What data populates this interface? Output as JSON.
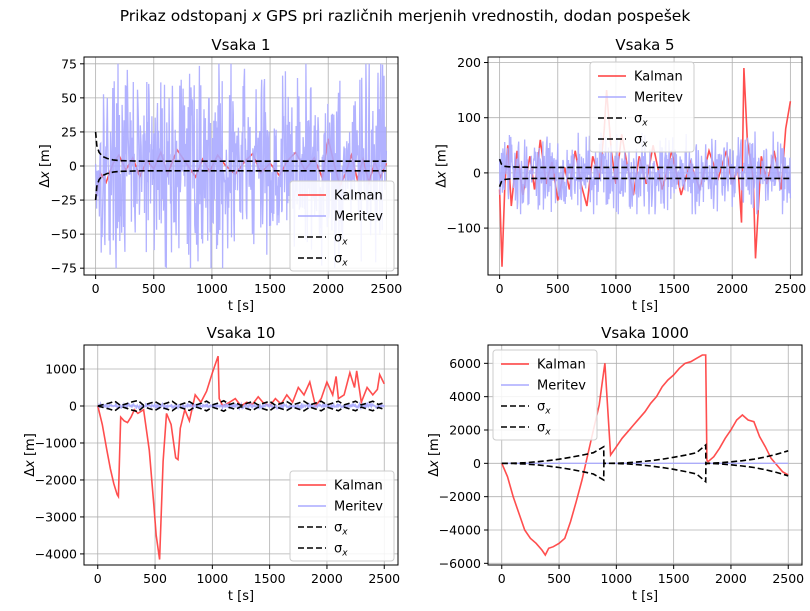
{
  "figure": {
    "suptitle_parts": [
      "Prikaz odstopanj ",
      "x",
      " GPS pri različnih merjenih vrednostih, dodan pospešek"
    ]
  },
  "colors": {
    "kalman": "#ff3b3b",
    "meritev": "#aaaaff",
    "sigma": "#000000",
    "grid": "#b0b0b0"
  },
  "chart_data": [
    {
      "type": "line",
      "title": "Vsaka 1",
      "xlabel": "t [s]",
      "ylabel_parts": [
        "Δ",
        "x",
        " [m]"
      ],
      "xlim": [
        -100,
        2600
      ],
      "ylim": [
        -80,
        80
      ],
      "xticks": [
        0,
        500,
        1000,
        1500,
        2000,
        2500
      ],
      "yticks": [
        -75,
        -50,
        -25,
        0,
        25,
        50,
        75
      ],
      "legend_position": "lower-right",
      "legend": [
        "Kalman",
        "Meritev",
        "σx",
        "σx"
      ],
      "series": [
        {
          "name": "Kalman",
          "kind": "kalman",
          "x": [
            0,
            40,
            90,
            150,
            200,
            260,
            320,
            380,
            440,
            500,
            560,
            620,
            700,
            780,
            860,
            920,
            980,
            1050,
            1120,
            1200,
            1280,
            1350,
            1420,
            1500,
            1580,
            1650,
            1720,
            1800,
            1880,
            1950,
            2000,
            2050,
            2100,
            2150,
            2200,
            2250,
            2300,
            2350,
            2400,
            2450,
            2500
          ],
          "y": [
            -25,
            -5,
            -12,
            2,
            8,
            -3,
            6,
            -8,
            4,
            -2,
            10,
            -6,
            12,
            2,
            -8,
            5,
            -4,
            8,
            0,
            -6,
            3,
            9,
            -5,
            2,
            -7,
            4,
            10,
            -3,
            6,
            -9,
            20,
            2,
            -15,
            -5,
            8,
            -10,
            5,
            -12,
            3,
            -8,
            2
          ]
        },
        {
          "name": "Meritev",
          "kind": "meritev",
          "noise_band": [
            -75,
            75
          ]
        },
        {
          "name": "σx",
          "kind": "sigma",
          "x": [
            0,
            10,
            30,
            60,
            100,
            150,
            200,
            400,
            800,
            1200,
            1600,
            2000,
            2500
          ],
          "y": [
            25,
            15,
            10,
            7,
            5.5,
            4.5,
            4,
            3.5,
            3.5,
            3.5,
            3.5,
            3.5,
            3.5
          ]
        },
        {
          "name": "σx",
          "kind": "sigma",
          "x": [
            0,
            10,
            30,
            60,
            100,
            150,
            200,
            400,
            800,
            1200,
            1600,
            2000,
            2500
          ],
          "y": [
            -25,
            -15,
            -10,
            -7,
            -5.5,
            -4.5,
            -4,
            -3.5,
            -3.5,
            -3.5,
            -3.5,
            -3.5,
            -3.5
          ]
        }
      ]
    },
    {
      "type": "line",
      "title": "Vsaka 5",
      "xlabel": "t [s]",
      "ylabel_parts": [
        "Δ",
        "x",
        " [m]"
      ],
      "xlim": [
        -100,
        2600
      ],
      "ylim": [
        -185,
        210
      ],
      "xticks": [
        0,
        500,
        1000,
        1500,
        2000,
        2500
      ],
      "yticks": [
        -100,
        0,
        100,
        200
      ],
      "legend_position": "upper-center",
      "legend": [
        "Kalman",
        "Meritev",
        "σx",
        "σx"
      ],
      "series": [
        {
          "name": "Kalman",
          "kind": "kalman",
          "x": [
            0,
            20,
            45,
            70,
            100,
            150,
            200,
            260,
            300,
            350,
            400,
            450,
            500,
            560,
            600,
            650,
            700,
            750,
            800,
            860,
            900,
            920,
            960,
            1000,
            1050,
            1100,
            1150,
            1200,
            1260,
            1320,
            1400,
            1480,
            1560,
            1640,
            1720,
            1800,
            1880,
            1950,
            2000,
            2050,
            2080,
            2100,
            2130,
            2180,
            2200,
            2250,
            2300,
            2360,
            2420,
            2460,
            2500
          ],
          "y": [
            -30,
            -170,
            -20,
            50,
            -60,
            40,
            -40,
            30,
            -30,
            60,
            -20,
            20,
            -50,
            10,
            -30,
            40,
            -20,
            -60,
            30,
            -10,
            80,
            150,
            40,
            -20,
            70,
            10,
            -40,
            30,
            -20,
            50,
            -30,
            40,
            -40,
            20,
            -30,
            40,
            -10,
            40,
            -20,
            10,
            -90,
            190,
            60,
            -10,
            -155,
            30,
            -20,
            40,
            -30,
            80,
            130
          ]
        },
        {
          "name": "Meritev",
          "kind": "meritev",
          "noise_band": [
            -75,
            75
          ]
        },
        {
          "name": "σx",
          "kind": "sigma",
          "x": [
            0,
            15,
            40,
            80,
            150,
            300,
            600,
            1000,
            1500,
            2000,
            2500
          ],
          "y": [
            25,
            16,
            12,
            11,
            10.5,
            10,
            10,
            10,
            10,
            10,
            10
          ]
        },
        {
          "name": "σx",
          "kind": "sigma",
          "x": [
            0,
            15,
            40,
            80,
            150,
            300,
            600,
            1000,
            1500,
            2000,
            2500
          ],
          "y": [
            -25,
            -16,
            -12,
            -11,
            -10.5,
            -10,
            -10,
            -10,
            -10,
            -10,
            -10
          ]
        }
      ]
    },
    {
      "type": "line",
      "title": "Vsaka 10",
      "xlabel": "t [s]",
      "ylabel_parts": [
        "Δ",
        "x",
        " [m]"
      ],
      "xlim": [
        -120,
        2620
      ],
      "ylim": [
        -4300,
        1650
      ],
      "xticks": [
        0,
        500,
        1000,
        1500,
        2000,
        2500
      ],
      "yticks": [
        -4000,
        -3000,
        -2000,
        -1000,
        0,
        1000
      ],
      "legend_position": "lower-right",
      "legend": [
        "Kalman",
        "Meritev",
        "σx",
        "σx"
      ],
      "series": [
        {
          "name": "Kalman",
          "kind": "kalman",
          "x": [
            0,
            40,
            80,
            110,
            140,
            170,
            180,
            200,
            230,
            260,
            290,
            320,
            350,
            400,
            450,
            490,
            510,
            540,
            570,
            600,
            640,
            680,
            700,
            720,
            760,
            800,
            850,
            900,
            950,
            1000,
            1050,
            1060,
            1090,
            1150,
            1200,
            1250,
            1300,
            1350,
            1400,
            1440,
            1500,
            1550,
            1600,
            1650,
            1700,
            1750,
            1800,
            1850,
            1900,
            1950,
            2000,
            2050,
            2080,
            2100,
            2150,
            2200,
            2240,
            2260,
            2300,
            2350,
            2400,
            2440,
            2460,
            2500
          ],
          "y": [
            0,
            -500,
            -1200,
            -1700,
            -2100,
            -2400,
            -2450,
            -300,
            -400,
            -450,
            -300,
            -100,
            -200,
            -100,
            -1200,
            -2700,
            -3500,
            -4150,
            -1500,
            -200,
            -500,
            -1400,
            -1450,
            -600,
            -100,
            -400,
            300,
            100,
            400,
            900,
            1350,
            200,
            0,
            100,
            200,
            0,
            100,
            50,
            250,
            100,
            0,
            200,
            50,
            300,
            100,
            500,
            300,
            650,
            0,
            200,
            650,
            300,
            800,
            200,
            300,
            900,
            500,
            950,
            100,
            500,
            300,
            450,
            850,
            600
          ]
        },
        {
          "name": "Meritev",
          "kind": "meritev",
          "noise_band": [
            -75,
            75
          ]
        },
        {
          "name": "σx",
          "kind": "sigma",
          "x": [
            0,
            50,
            100,
            150,
            200,
            250,
            300,
            350,
            400,
            450,
            500,
            550,
            600,
            650,
            700,
            750,
            800,
            850,
            900,
            950,
            1000,
            1050,
            1100,
            1150,
            1200,
            1250,
            1300,
            1350,
            1400,
            1450,
            1500,
            1550,
            1600,
            1650,
            1700,
            1750,
            1800,
            1850,
            1900,
            1950,
            2000,
            2050,
            2100,
            2150,
            2200,
            2250,
            2300,
            2350,
            2400,
            2450,
            2500
          ],
          "y": [
            0,
            40,
            80,
            130,
            10,
            60,
            110,
            150,
            20,
            70,
            120,
            30,
            80,
            130,
            20,
            70,
            120,
            20,
            70,
            130,
            30,
            80,
            140,
            40,
            90,
            20,
            70,
            120,
            30,
            80,
            130,
            20,
            70,
            120,
            30,
            80,
            130,
            30,
            80,
            130,
            30,
            80,
            130,
            30,
            80,
            130,
            30,
            80,
            130,
            40,
            90
          ]
        },
        {
          "name": "σx",
          "kind": "sigma",
          "x": [
            0,
            50,
            100,
            150,
            200,
            250,
            300,
            350,
            400,
            450,
            500,
            550,
            600,
            650,
            700,
            750,
            800,
            850,
            900,
            950,
            1000,
            1050,
            1100,
            1150,
            1200,
            1250,
            1300,
            1350,
            1400,
            1450,
            1500,
            1550,
            1600,
            1650,
            1700,
            1750,
            1800,
            1850,
            1900,
            1950,
            2000,
            2050,
            2100,
            2150,
            2200,
            2250,
            2300,
            2350,
            2400,
            2450,
            2500
          ],
          "y": [
            0,
            -40,
            -80,
            -130,
            -10,
            -60,
            -110,
            -150,
            -20,
            -70,
            -120,
            -30,
            -80,
            -130,
            -20,
            -70,
            -120,
            -20,
            -70,
            -130,
            -30,
            -80,
            -140,
            -40,
            -90,
            -20,
            -70,
            -120,
            -30,
            -80,
            -130,
            -20,
            -70,
            -120,
            -30,
            -80,
            -130,
            -30,
            -80,
            -130,
            -30,
            -80,
            -130,
            -30,
            -80,
            -130,
            -30,
            -80,
            -130,
            -40,
            -90
          ]
        }
      ]
    },
    {
      "type": "line",
      "title": "Vsaka 1000",
      "xlabel": "t [s]",
      "ylabel_parts": [
        "Δ",
        "x",
        " [m]"
      ],
      "xlim": [
        -120,
        2620
      ],
      "ylim": [
        -6100,
        7100
      ],
      "xticks": [
        0,
        500,
        1000,
        1500,
        2000,
        2500
      ],
      "yticks": [
        -6000,
        -4000,
        -2000,
        0,
        2000,
        4000,
        6000
      ],
      "legend_position": "upper-left",
      "legend": [
        "Kalman",
        "Meritev",
        "σx",
        "σx"
      ],
      "series": [
        {
          "name": "Kalman",
          "kind": "kalman",
          "x": [
            0,
            50,
            100,
            150,
            200,
            250,
            300,
            350,
            380,
            410,
            450,
            500,
            550,
            600,
            650,
            700,
            750,
            800,
            850,
            890,
            900,
            950,
            1000,
            1050,
            1100,
            1150,
            1200,
            1250,
            1300,
            1350,
            1400,
            1450,
            1500,
            1550,
            1600,
            1650,
            1700,
            1750,
            1780,
            1790,
            1800,
            1850,
            1900,
            1950,
            2000,
            2050,
            2100,
            2150,
            2200,
            2250,
            2300,
            2350,
            2400,
            2450,
            2500
          ],
          "y": [
            0,
            -800,
            -2000,
            -3000,
            -4000,
            -4500,
            -4800,
            -5200,
            -5500,
            -5100,
            -5000,
            -4800,
            -4500,
            -3500,
            -2300,
            -1000,
            500,
            2000,
            3500,
            5500,
            6000,
            500,
            1000,
            1500,
            1900,
            2300,
            2700,
            3100,
            3600,
            4000,
            4600,
            5000,
            5300,
            5700,
            6000,
            6100,
            6300,
            6500,
            6500,
            200,
            100,
            400,
            900,
            1500,
            2000,
            2600,
            2900,
            2600,
            2500,
            1600,
            1000,
            300,
            -100,
            -500,
            -700
          ]
        },
        {
          "name": "Meritev",
          "kind": "meritev",
          "flat": true
        },
        {
          "name": "σx",
          "kind": "sigma",
          "x": [
            0,
            100,
            200,
            300,
            400,
            500,
            600,
            700,
            800,
            890,
            891,
            1000,
            1100,
            1200,
            1300,
            1400,
            1500,
            1600,
            1700,
            1780,
            1781,
            1900,
            2000,
            2100,
            2200,
            2300,
            2400,
            2500
          ],
          "y": [
            0,
            10,
            40,
            90,
            160,
            250,
            360,
            490,
            640,
            1000,
            0,
            10,
            40,
            90,
            160,
            250,
            360,
            490,
            640,
            1100,
            0,
            30,
            90,
            160,
            250,
            380,
            550,
            750
          ]
        },
        {
          "name": "σx",
          "kind": "sigma",
          "x": [
            0,
            100,
            200,
            300,
            400,
            500,
            600,
            700,
            800,
            890,
            891,
            1000,
            1100,
            1200,
            1300,
            1400,
            1500,
            1600,
            1700,
            1780,
            1781,
            1900,
            2000,
            2100,
            2200,
            2300,
            2400,
            2500
          ],
          "y": [
            0,
            -10,
            -40,
            -90,
            -160,
            -250,
            -360,
            -490,
            -640,
            -1000,
            0,
            -10,
            -40,
            -90,
            -160,
            -250,
            -360,
            -490,
            -640,
            -1100,
            0,
            -30,
            -90,
            -160,
            -250,
            -380,
            -550,
            -750
          ]
        }
      ]
    }
  ]
}
